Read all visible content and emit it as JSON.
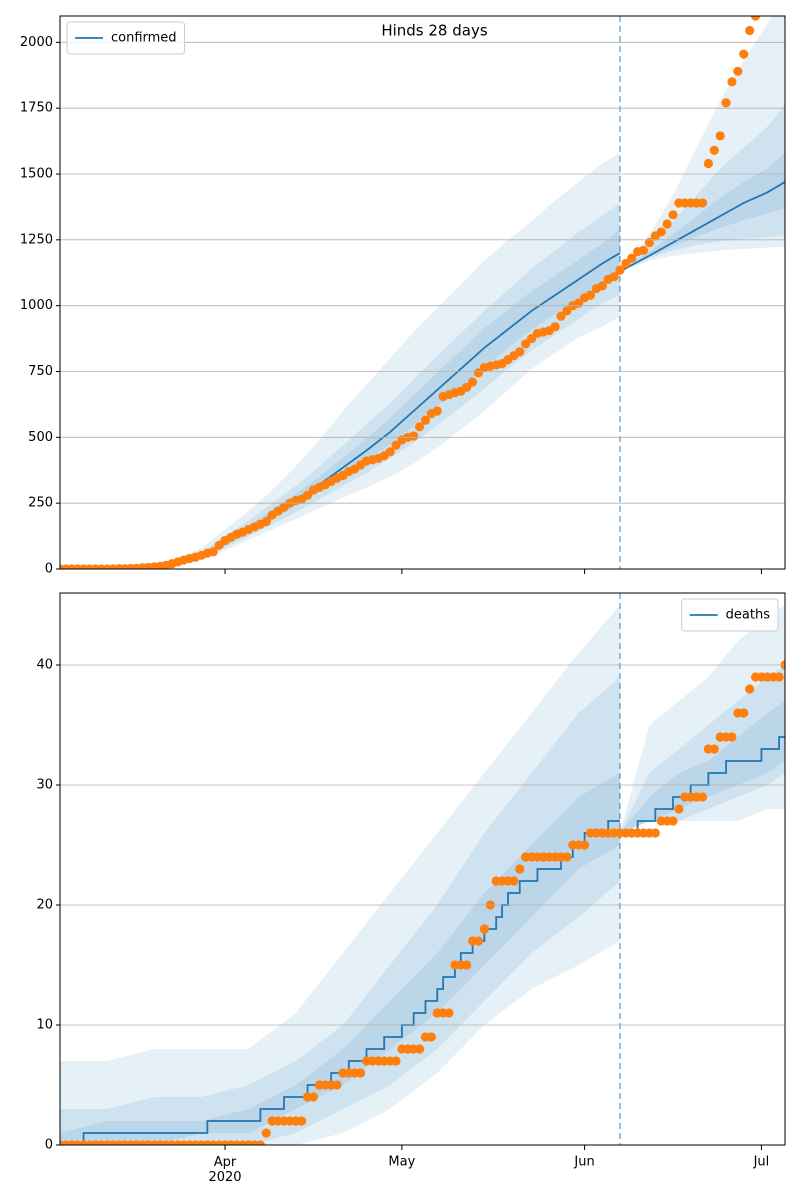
{
  "chart_data": [
    {
      "type": "line",
      "title": "Hinds 28 days",
      "xlim": [
        0,
        123
      ],
      "xticks": [
        28,
        58,
        89,
        119
      ],
      "ylim": [
        0,
        2100
      ],
      "yticks": [
        0,
        250,
        500,
        750,
        1000,
        1250,
        1500,
        1750,
        2000
      ],
      "grid": true,
      "legend": "upper left",
      "vline": 95,
      "vline_color": "#1f77b4",
      "bands": {
        "color": "#1f77b4",
        "opacity": 0.11,
        "x": [
          0,
          16,
          20,
          24,
          28,
          32,
          36,
          40,
          44,
          48,
          52,
          56,
          60,
          64,
          68,
          72,
          76,
          80,
          84,
          88,
          92,
          95,
          null,
          95,
          100,
          104,
          108,
          112,
          116,
          120,
          123
        ],
        "levels": [
          {
            "lower": [
              0,
              2,
              15,
              35,
              70,
              110,
              150,
              190,
              230,
              270,
              310,
              350,
              400,
              460,
              530,
              600,
              680,
              760,
              820,
              880,
              920,
              960,
              null,
              1130,
              1170,
              1190,
              1200,
              1210,
              1215,
              1220,
              1225
            ],
            "upper": [
              0,
              10,
              40,
              80,
              150,
              220,
              300,
              390,
              490,
              600,
              700,
              800,
              900,
              990,
              1080,
              1170,
              1250,
              1320,
              1400,
              1470,
              1540,
              1580,
              null,
              1130,
              1270,
              1420,
              1600,
              1780,
              1930,
              2070,
              2200
            ]
          },
          {
            "lower": [
              0,
              3,
              18,
              40,
              80,
              125,
              170,
              215,
              265,
              315,
              365,
              420,
              480,
              545,
              615,
              685,
              760,
              830,
              890,
              950,
              1010,
              1040,
              null,
              1130,
              1180,
              1210,
              1230,
              1245,
              1255,
              1260,
              1265
            ],
            "upper": [
              0,
              8,
              33,
              65,
              125,
              185,
              250,
              315,
              390,
              470,
              550,
              630,
              720,
              810,
              895,
              980,
              1060,
              1140,
              1210,
              1280,
              1340,
              1390,
              null,
              1130,
              1230,
              1320,
              1420,
              1520,
              1600,
              1680,
              1760
            ]
          },
          {
            "lower": [
              0,
              4,
              21,
              45,
              90,
              137,
              188,
              240,
              295,
              352,
              410,
              472,
              545,
              618,
              690,
              765,
              838,
              910,
              968,
              1030,
              1090,
              1120,
              null,
              1130,
              1185,
              1225,
              1262,
              1295,
              1325,
              1350,
              1370
            ],
            "upper": [
              0,
              6,
              29,
              57,
              112,
              165,
              225,
              285,
              350,
              422,
              495,
              572,
              660,
              745,
              830,
              915,
              985,
              1055,
              1115,
              1175,
              1235,
              1290,
              null,
              1130,
              1205,
              1270,
              1340,
              1410,
              1470,
              1520,
              1580
            ]
          }
        ]
      },
      "series": [
        {
          "name": "confirmed",
          "color": "#1f77b4",
          "x": [
            0,
            16,
            20,
            24,
            28,
            32,
            36,
            40,
            44,
            48,
            52,
            56,
            60,
            64,
            68,
            72,
            76,
            80,
            84,
            88,
            92,
            95,
            null,
            95,
            100,
            104,
            108,
            112,
            116,
            120,
            123
          ],
          "values": [
            0,
            5,
            25,
            50,
            100,
            150,
            205,
            260,
            320,
            385,
            450,
            520,
            600,
            680,
            760,
            840,
            910,
            980,
            1040,
            1100,
            1160,
            1200,
            null,
            1130,
            1190,
            1240,
            1290,
            1340,
            1390,
            1430,
            1470
          ]
        },
        {
          "color": "#ff7f0e",
          "marker": "o",
          "x": [
            0,
            1,
            2,
            3,
            4,
            5,
            6,
            7,
            8,
            9,
            10,
            11,
            12,
            13,
            14,
            15,
            16,
            17,
            18,
            19,
            20,
            21,
            22,
            23,
            24,
            25,
            26,
            27,
            28,
            29,
            30,
            31,
            32,
            33,
            34,
            35,
            36,
            37,
            38,
            39,
            40,
            41,
            42,
            43,
            44,
            45,
            46,
            47,
            48,
            49,
            50,
            51,
            52,
            53,
            54,
            55,
            56,
            57,
            58,
            59,
            60,
            61,
            62,
            63,
            64,
            65,
            66,
            67,
            68,
            69,
            70,
            71,
            72,
            73,
            74,
            75,
            76,
            77,
            78,
            79,
            80,
            81,
            82,
            83,
            84,
            85,
            86,
            87,
            88,
            89,
            90,
            91,
            92,
            93,
            94,
            95,
            96,
            97,
            98,
            99,
            100,
            101,
            102,
            103,
            104,
            105,
            106,
            107,
            108,
            109,
            110,
            111,
            112,
            113,
            114,
            115,
            116,
            117,
            118
          ],
          "values": [
            0,
            0,
            0,
            0,
            0,
            0,
            0,
            0,
            0,
            0,
            1,
            1,
            2,
            3,
            5,
            6,
            8,
            10,
            14,
            20,
            27,
            34,
            40,
            45,
            52,
            60,
            65,
            90,
            108,
            120,
            132,
            140,
            150,
            160,
            170,
            180,
            205,
            220,
            235,
            250,
            260,
            265,
            280,
            300,
            310,
            320,
            333,
            345,
            355,
            370,
            380,
            395,
            410,
            415,
            420,
            430,
            445,
            470,
            490,
            500,
            505,
            540,
            565,
            590,
            600,
            655,
            662,
            670,
            675,
            690,
            710,
            745,
            765,
            770,
            775,
            780,
            795,
            810,
            825,
            855,
            875,
            895,
            900,
            905,
            920,
            960,
            980,
            1000,
            1010,
            1030,
            1040,
            1065,
            1075,
            1100,
            1110,
            1135,
            1160,
            1180,
            1205,
            1210,
            1240,
            1265,
            1280,
            1310,
            1345,
            1390,
            1390,
            1390,
            1390,
            1390,
            1540,
            1590,
            1645,
            1770,
            1850,
            1890,
            1955,
            2045,
            2100
          ]
        }
      ]
    },
    {
      "type": "line",
      "xlim": [
        0,
        123
      ],
      "xticks": [
        {
          "value": 28,
          "label": "Apr\n2020"
        },
        {
          "value": 58,
          "label": "May"
        },
        {
          "value": 89,
          "label": "Jun"
        },
        {
          "value": 119,
          "label": "Jul"
        }
      ],
      "ylim": [
        0,
        46
      ],
      "yticks": [
        0,
        10,
        20,
        30,
        40
      ],
      "grid": true,
      "legend": "upper right",
      "vline": 95,
      "vline_color": "#1f77b4",
      "bands": {
        "color": "#1f77b4",
        "opacity": 0.11,
        "x": [
          0,
          8,
          16,
          24,
          32,
          40,
          48,
          56,
          64,
          72,
          80,
          88,
          95,
          null,
          95,
          100,
          105,
          110,
          115,
          120,
          123
        ],
        "levels": [
          {
            "lower": [
              0,
              0,
              0,
              0,
              0,
              0,
              1,
              3,
              6,
              10,
              13,
              15,
              17,
              null,
              26,
              27,
              27,
              27,
              27,
              28,
              28
            ],
            "upper": [
              7,
              7,
              8,
              8,
              8,
              11,
              16,
              21,
              26,
              31,
              36,
              41,
              45,
              null,
              26,
              35,
              37,
              39,
              42,
              44,
              45
            ]
          },
          {
            "lower": [
              0,
              0,
              0,
              0,
              0,
              1,
              3,
              5,
              8,
              12,
              16,
              19,
              22,
              null,
              26,
              27,
              27,
              28,
              29,
              30,
              31
            ],
            "upper": [
              3,
              3,
              4,
              4,
              5,
              7,
              10,
              15,
              20,
              26,
              31,
              36,
              39,
              null,
              26,
              31,
              33,
              35,
              37,
              39,
              40
            ]
          },
          {
            "lower": [
              0,
              0,
              0,
              1,
              1,
              3,
              5,
              8,
              11,
              15,
              19,
              23,
              25,
              null,
              26,
              27,
              28,
              29,
              30,
              31,
              32
            ],
            "upper": [
              1,
              2,
              2,
              2,
              3,
              5,
              8,
              12,
              16,
              21,
              25,
              29,
              31,
              null,
              26,
              29,
              31,
              32,
              34,
              36,
              37
            ]
          }
        ]
      },
      "series": [
        {
          "name": "deaths",
          "color": "#1f77b4",
          "drawstyle": "steps-post",
          "x": [
            0,
            4,
            25,
            34,
            38,
            42,
            46,
            49,
            52,
            55,
            58,
            60,
            62,
            64,
            65,
            67,
            68,
            70,
            72,
            74,
            75,
            76,
            78,
            81,
            85,
            87,
            89,
            93,
            95,
            null,
            95,
            98,
            101,
            104,
            107,
            110,
            113,
            119,
            122,
            123
          ],
          "values": [
            0,
            1,
            2,
            3,
            4,
            5,
            6,
            7,
            8,
            9,
            10,
            11,
            12,
            13,
            14,
            15,
            16,
            17,
            18,
            19,
            20,
            21,
            22,
            23,
            24,
            25,
            26,
            27,
            27,
            null,
            26,
            27,
            28,
            29,
            30,
            31,
            32,
            33,
            34,
            34
          ]
        },
        {
          "color": "#ff7f0e",
          "marker": "o",
          "x": [
            0,
            1,
            2,
            3,
            4,
            5,
            6,
            7,
            8,
            9,
            10,
            11,
            12,
            13,
            14,
            15,
            16,
            17,
            18,
            19,
            20,
            21,
            22,
            23,
            24,
            25,
            26,
            27,
            28,
            29,
            30,
            31,
            32,
            33,
            34,
            35,
            36,
            37,
            38,
            39,
            40,
            41,
            42,
            43,
            44,
            45,
            46,
            47,
            48,
            49,
            50,
            51,
            52,
            53,
            54,
            55,
            56,
            57,
            58,
            59,
            60,
            61,
            62,
            63,
            64,
            65,
            66,
            67,
            68,
            69,
            70,
            71,
            72,
            73,
            74,
            75,
            76,
            77,
            78,
            79,
            80,
            81,
            82,
            83,
            84,
            85,
            86,
            87,
            88,
            89,
            90,
            91,
            92,
            93,
            94,
            95,
            96,
            97,
            98,
            99,
            100,
            101,
            102,
            103,
            104,
            105,
            106,
            107,
            108,
            109,
            110,
            111,
            112,
            113,
            114,
            115,
            116,
            117,
            118,
            119,
            120,
            121,
            122,
            123
          ],
          "values": [
            0,
            0,
            0,
            0,
            0,
            0,
            0,
            0,
            0,
            0,
            0,
            0,
            0,
            0,
            0,
            0,
            0,
            0,
            0,
            0,
            0,
            0,
            0,
            0,
            0,
            0,
            0,
            0,
            0,
            0,
            0,
            0,
            0,
            0,
            0,
            1,
            2,
            2,
            2,
            2,
            2,
            2,
            4,
            4,
            5,
            5,
            5,
            5,
            6,
            6,
            6,
            6,
            7,
            7,
            7,
            7,
            7,
            7,
            8,
            8,
            8,
            8,
            9,
            9,
            11,
            11,
            11,
            15,
            15,
            15,
            17,
            17,
            18,
            20,
            22,
            22,
            22,
            22,
            23,
            24,
            24,
            24,
            24,
            24,
            24,
            24,
            24,
            25,
            25,
            25,
            26,
            26,
            26,
            26,
            26,
            26,
            26,
            26,
            26,
            26,
            26,
            26,
            27,
            27,
            27,
            28,
            29,
            29,
            29,
            29,
            33,
            33,
            34,
            34,
            34,
            36,
            36,
            38,
            39,
            39,
            39,
            39,
            39,
            40
          ]
        }
      ]
    }
  ]
}
